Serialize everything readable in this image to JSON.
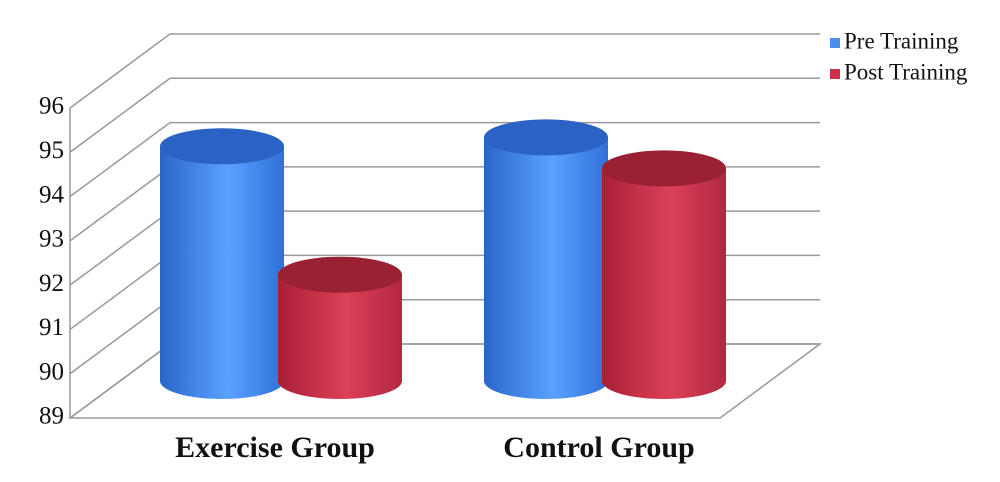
{
  "chart_data": {
    "type": "bar3d",
    "categories": [
      "Exercise Group",
      "Control Group"
    ],
    "series": [
      {
        "name": "Pre Training",
        "color": "#4a8ef0",
        "values": [
          94.3,
          94.5
        ]
      },
      {
        "name": "Post Training",
        "color": "#cc3048",
        "values": [
          91.4,
          93.8
        ]
      }
    ],
    "ylim": [
      89,
      96
    ],
    "yticks": [
      89,
      90,
      91,
      92,
      93,
      94,
      95,
      96
    ],
    "grid": true,
    "legend": "top-right"
  }
}
